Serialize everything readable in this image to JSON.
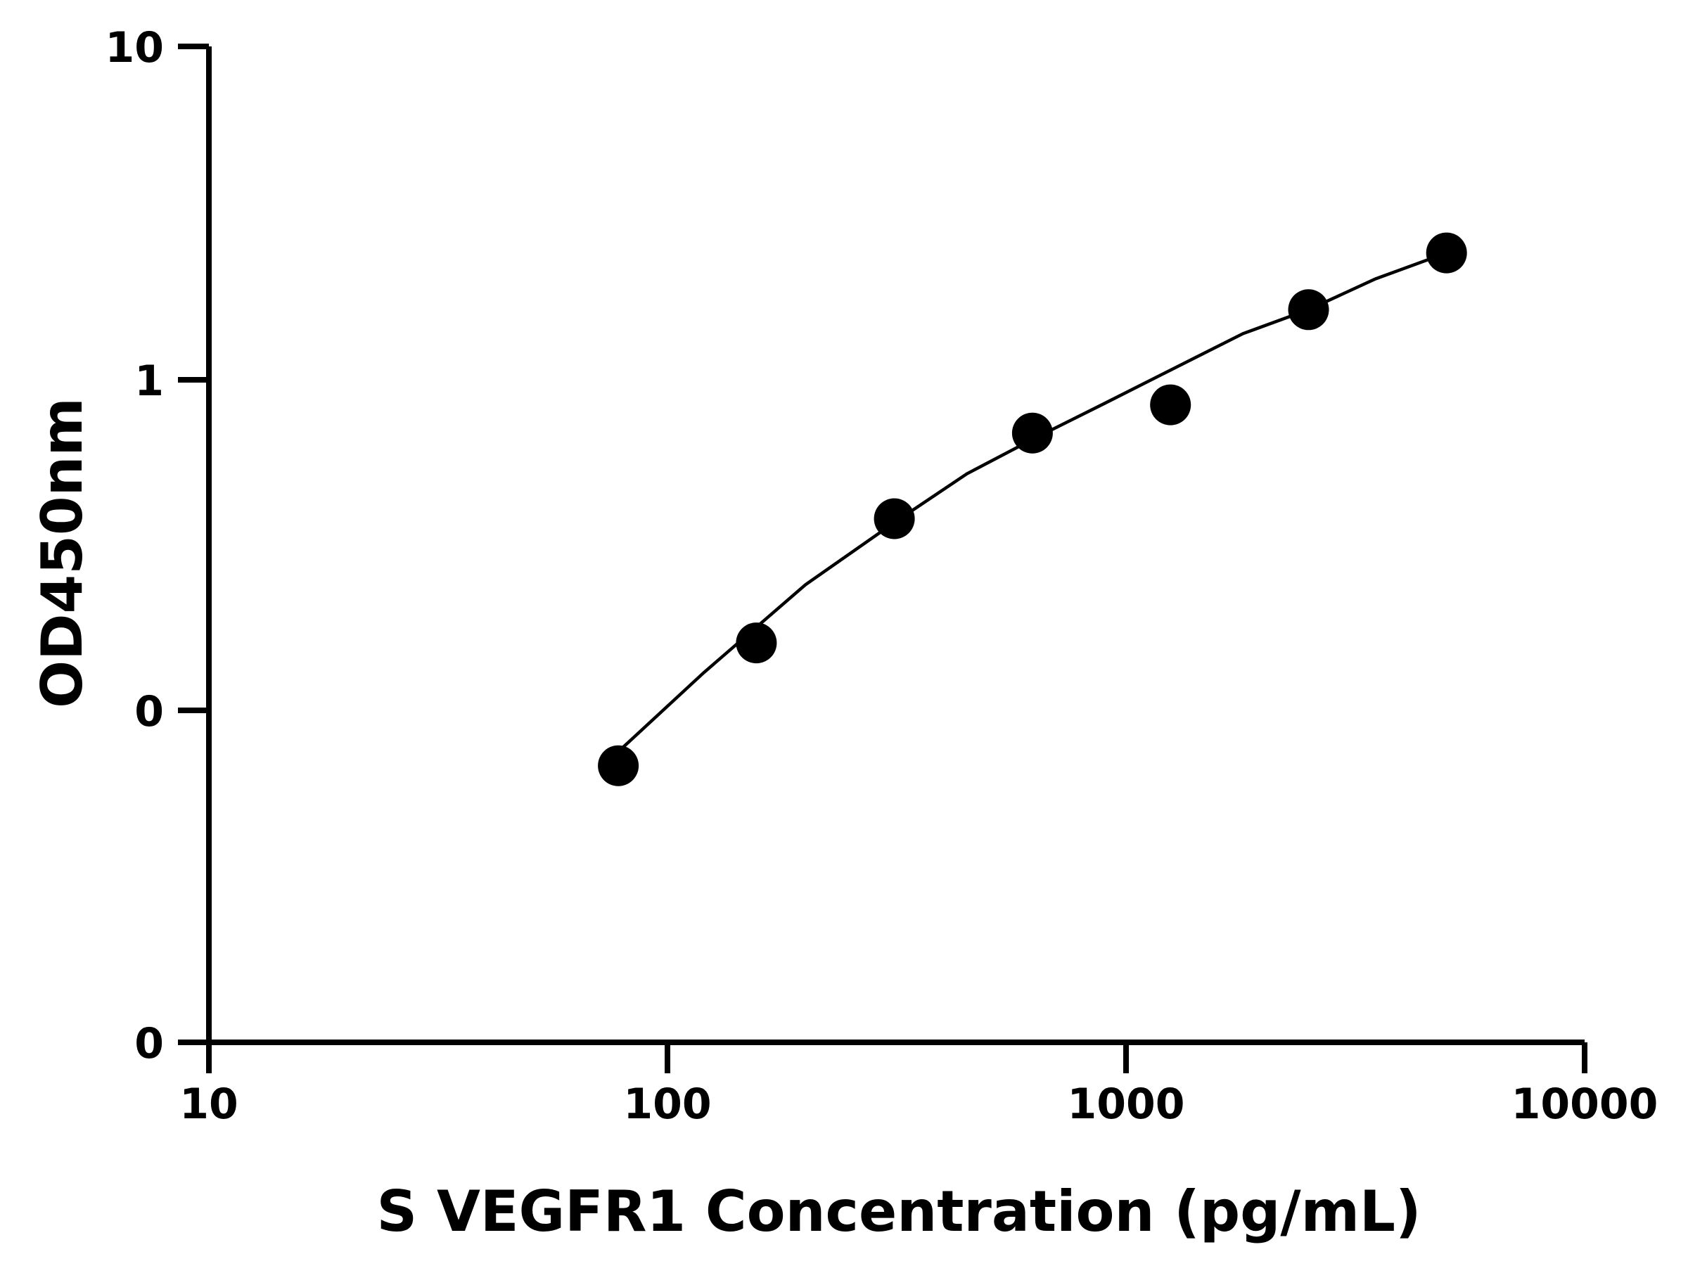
{
  "chart_data": {
    "type": "scatter",
    "title": "",
    "xlabel": "S VEGFR1 Concentration (pg/mL)",
    "ylabel": "OD450nm",
    "x_scale": "log",
    "xlim": [
      10,
      10000
    ],
    "x_ticks": [
      "10",
      "100",
      "1000",
      "10000"
    ],
    "y_ticks": [
      "0",
      "0",
      "1",
      "10"
    ],
    "grid": false,
    "legend": "none",
    "colors": {
      "points": "#000000",
      "curve": "#000000",
      "axes": "#000000"
    },
    "series": [
      {
        "x": [
          78.13,
          156.25,
          312.5,
          625,
          1250,
          2500,
          5000
        ],
        "y": [
          0.068,
          0.16,
          0.38,
          0.69,
          0.84,
          1.63,
          2.42
        ]
      }
    ],
    "fit": {
      "x": [
        78.13,
        120,
        200,
        312.5,
        450,
        625,
        900,
        1250,
        1800,
        2500,
        3500,
        5000
      ],
      "y": [
        0.075,
        0.13,
        0.24,
        0.37,
        0.52,
        0.66,
        0.85,
        1.07,
        1.38,
        1.63,
        2.02,
        2.42
      ]
    }
  }
}
